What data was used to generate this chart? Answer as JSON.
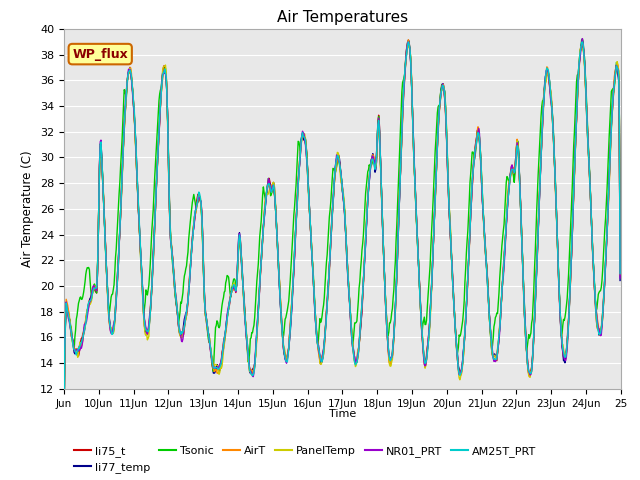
{
  "title": "Air Temperatures",
  "xlabel": "Time",
  "ylabel": "Air Temperature (C)",
  "ylim": [
    12,
    40
  ],
  "background_color": "#e8e8e8",
  "figure_color": "#ffffff",
  "grid_color": "#ffffff",
  "wp_flux_label": "WP_flux",
  "series_colors": {
    "li75_t": "#cc0000",
    "li77_temp": "#00008b",
    "Tsonic": "#00cc00",
    "AirT": "#ff8800",
    "PanelTemp": "#cccc00",
    "NR01_PRT": "#9900cc",
    "AM25T_PRT": "#00cccc"
  },
  "xtick_labels": [
    "Jun",
    "10Jun",
    "11Jun",
    "12Jun",
    "13Jun",
    "14Jun",
    "15Jun",
    "16Jun",
    "17Jun",
    "18Jun",
    "19Jun",
    "20Jun",
    "21Jun",
    "22Jun",
    "23Jun",
    "24Jun",
    "25"
  ],
  "ytick_positions": [
    12,
    14,
    16,
    18,
    20,
    22,
    24,
    26,
    28,
    30,
    32,
    34,
    36,
    38,
    40
  ]
}
